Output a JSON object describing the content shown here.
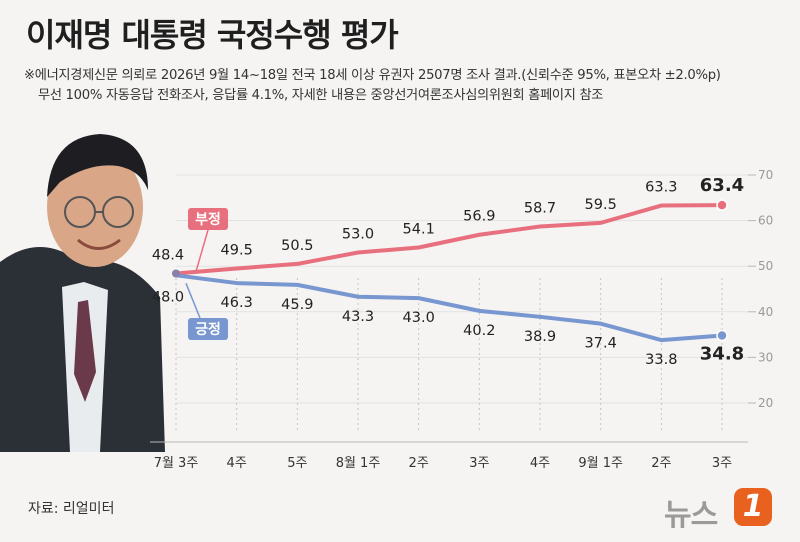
{
  "title": "이재명 대통령 국정수행 평가",
  "note_line1": "※에너지경제신문 의뢰로 2026년 9월 14~18일 전국 18세 이상 유권자 2507명 조사 결과.(신뢰수준 95%, 표본오차 ±2.0%p)",
  "note_line2": "무선 100% 자동응답 전화조사, 응답률 4.1%, 자세한 내용은 중앙선거여론조사심의위원회 홈페이지 참조",
  "source": "자료: 리얼미터",
  "logo": {
    "text": "뉴스",
    "badge": "1"
  },
  "chart_data": {
    "type": "line",
    "categories": [
      "7월 3주",
      "4주",
      "5주",
      "8월 1주",
      "2주",
      "3주",
      "4주",
      "9월 1주",
      "2주",
      "3주"
    ],
    "series": [
      {
        "name": "부정",
        "color": "#e8707e",
        "values": [
          48.4,
          49.5,
          50.5,
          53.0,
          54.1,
          56.9,
          58.7,
          59.5,
          63.3,
          63.4
        ]
      },
      {
        "name": "긍정",
        "color": "#7896cf",
        "values": [
          48.0,
          46.3,
          45.9,
          43.3,
          43.0,
          40.2,
          38.9,
          37.4,
          33.8,
          34.8
        ]
      }
    ],
    "ylim": [
      20,
      70
    ],
    "yticks": [
      20,
      30,
      40,
      50,
      60,
      70
    ],
    "grid": true
  }
}
